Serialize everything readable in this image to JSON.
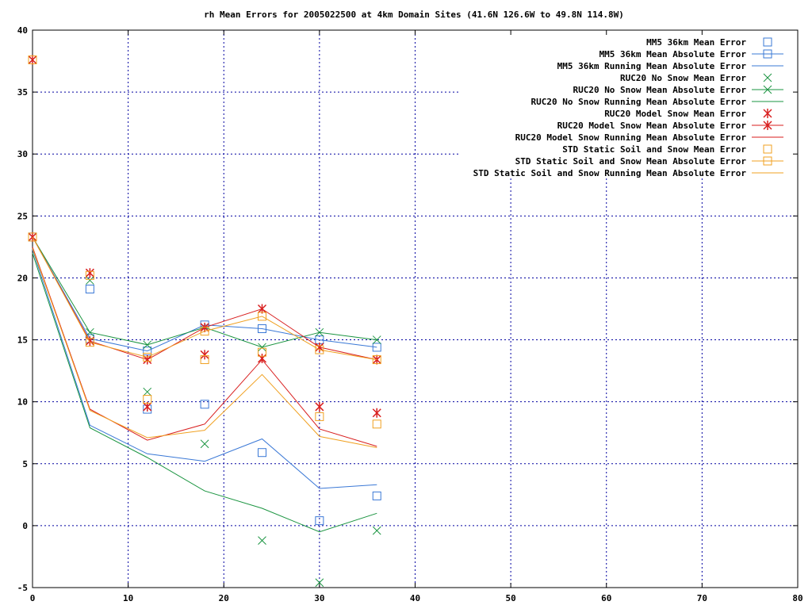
{
  "chart_data": {
    "type": "line",
    "title": "rh Mean Errors for 2005022500 at 4km Domain Sites (41.6N 126.6W to 49.8N 114.8W)",
    "xlabel": "",
    "ylabel": "",
    "xlim": [
      0,
      80
    ],
    "ylim": [
      -5,
      40
    ],
    "xticks": [
      0,
      10,
      20,
      30,
      40,
      50,
      60,
      70,
      80
    ],
    "yticks": [
      -5,
      0,
      5,
      10,
      15,
      20,
      25,
      30,
      35,
      40
    ],
    "xtick_labels": [
      "0",
      "10",
      "20",
      "30",
      "40",
      "50",
      "60",
      "70",
      "80"
    ],
    "ytick_labels": [
      "-5",
      "0",
      "5",
      "10",
      "15",
      "20",
      "25",
      "30",
      "35",
      "40"
    ],
    "grid": true,
    "legend_position": "top-right",
    "series": [
      {
        "name": "MM5 36km Mean Error",
        "style": "points",
        "marker": "square",
        "color": "#3a78d6",
        "x": [
          0,
          6,
          12,
          18,
          24,
          30,
          36
        ],
        "y": [
          37.6,
          19.1,
          9.4,
          9.8,
          5.9,
          0.4,
          2.4
        ]
      },
      {
        "name": "MM5 36km Mean Absolute Error",
        "style": "linespoints",
        "marker": "square",
        "color": "#3a78d6",
        "x": [
          0,
          6,
          12,
          18,
          24,
          30,
          36
        ],
        "y": [
          23.3,
          15.1,
          14.1,
          16.2,
          15.9,
          15.0,
          14.4
        ]
      },
      {
        "name": "MM5 36km Running Mean Absolute Error",
        "style": "lines",
        "marker": "none",
        "color": "#3a78d6",
        "x": [
          0,
          6,
          12,
          18,
          24,
          30,
          36
        ],
        "y": [
          22.3,
          8.1,
          5.8,
          5.2,
          7.0,
          3.0,
          3.3
        ]
      },
      {
        "name": "RUC20 No Snow Mean Error",
        "style": "points",
        "marker": "x",
        "color": "#1a9440",
        "x": [
          0,
          6,
          12,
          18,
          24,
          30,
          36
        ],
        "y": [
          37.6,
          19.8,
          10.8,
          6.6,
          -1.2,
          -4.6,
          -0.4
        ]
      },
      {
        "name": "RUC20 No Snow Mean Absolute Error",
        "style": "linespoints",
        "marker": "x",
        "color": "#1a9440",
        "x": [
          0,
          6,
          12,
          18,
          24,
          30,
          36
        ],
        "y": [
          23.3,
          15.6,
          14.6,
          16.0,
          14.4,
          15.6,
          15.0
        ]
      },
      {
        "name": "RUC20 No Snow Running Mean Absolute Error",
        "style": "lines",
        "marker": "none",
        "color": "#1a9440",
        "x": [
          0,
          6,
          12,
          18,
          24,
          30,
          36
        ],
        "y": [
          22.0,
          7.9,
          5.5,
          2.8,
          1.4,
          -0.5,
          1.0
        ]
      },
      {
        "name": "RUC20 Model Snow Mean Error",
        "style": "points",
        "marker": "star",
        "color": "#d81e1e",
        "x": [
          0,
          6,
          12,
          18,
          24,
          30,
          36
        ],
        "y": [
          37.6,
          20.4,
          9.6,
          13.8,
          13.5,
          9.6,
          9.1
        ]
      },
      {
        "name": "RUC20 Model Snow Mean Absolute Error",
        "style": "linespoints",
        "marker": "star",
        "color": "#d81e1e",
        "x": [
          0,
          6,
          12,
          18,
          24,
          30,
          36
        ],
        "y": [
          23.3,
          14.9,
          13.4,
          16.0,
          17.5,
          14.4,
          13.4
        ]
      },
      {
        "name": "RUC20 Model Snow Running Mean Absolute Error",
        "style": "lines",
        "marker": "none",
        "color": "#d81e1e",
        "x": [
          0,
          6,
          12,
          18,
          24,
          30,
          36
        ],
        "y": [
          22.5,
          9.4,
          6.9,
          8.2,
          13.4,
          7.8,
          6.4
        ]
      },
      {
        "name": "STD Static Soil and Snow Mean Error",
        "style": "points",
        "marker": "square",
        "color": "#f0a020",
        "x": [
          0,
          6,
          12,
          18,
          24,
          30,
          36
        ],
        "y": [
          37.6,
          20.2,
          10.2,
          13.4,
          14.0,
          8.8,
          8.2
        ]
      },
      {
        "name": "STD Static Soil and Snow Mean Absolute Error",
        "style": "linespoints",
        "marker": "square",
        "color": "#f0a020",
        "x": [
          0,
          6,
          12,
          18,
          24,
          30,
          36
        ],
        "y": [
          23.3,
          14.8,
          13.6,
          15.7,
          16.9,
          14.2,
          13.4
        ]
      },
      {
        "name": "STD Static Soil and Snow Running Mean Absolute Error",
        "style": "lines",
        "marker": "none",
        "color": "#f0a020",
        "x": [
          0,
          6,
          12,
          18,
          24,
          30,
          36
        ],
        "y": [
          22.4,
          9.3,
          7.1,
          7.7,
          12.2,
          7.2,
          6.3
        ]
      }
    ]
  }
}
